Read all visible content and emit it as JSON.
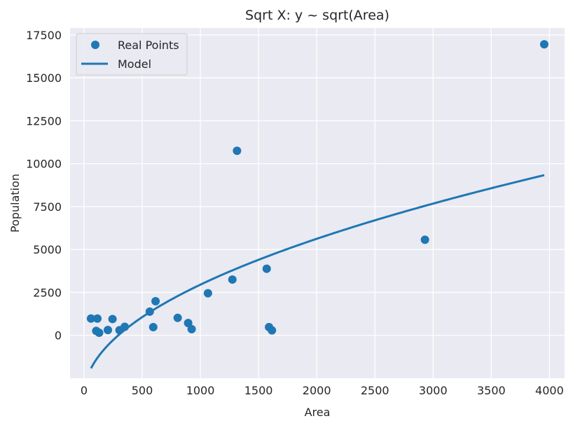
{
  "chart_data": {
    "type": "scatter",
    "title": "Sqrt X: y ~ sqrt(Area)",
    "xlabel": "Area",
    "ylabel": "Population",
    "xlim": [
      -120,
      4130
    ],
    "ylim": [
      -2500,
      17900
    ],
    "xticks": [
      0,
      500,
      1000,
      1500,
      2000,
      2500,
      3000,
      3500,
      4000
    ],
    "yticks": [
      0,
      2500,
      5000,
      7500,
      10000,
      12500,
      15000,
      17500
    ],
    "grid": true,
    "legend_position": "top-left",
    "colors": {
      "series": "#1f77b4",
      "plot_background": "#eaeaf2",
      "grid": "#ffffff",
      "text": "#262626"
    },
    "series": [
      {
        "name": "Real Points",
        "kind": "scatter",
        "points": [
          [
            60,
            980
          ],
          [
            105,
            260
          ],
          [
            115,
            980
          ],
          [
            130,
            150
          ],
          [
            205,
            310
          ],
          [
            245,
            950
          ],
          [
            305,
            300
          ],
          [
            350,
            500
          ],
          [
            565,
            1380
          ],
          [
            595,
            480
          ],
          [
            615,
            1990
          ],
          [
            805,
            1020
          ],
          [
            895,
            720
          ],
          [
            925,
            360
          ],
          [
            1065,
            2450
          ],
          [
            1275,
            3250
          ],
          [
            1315,
            10750
          ],
          [
            1570,
            3880
          ],
          [
            1590,
            480
          ],
          [
            1615,
            290
          ],
          [
            2930,
            5570
          ],
          [
            3955,
            16950
          ]
        ]
      },
      {
        "name": "Model",
        "kind": "line",
        "model": "y = a + b*sqrt(x)",
        "coefficients": {
          "a": -3500,
          "b": 204
        },
        "x_range": [
          60,
          3955
        ]
      }
    ]
  }
}
